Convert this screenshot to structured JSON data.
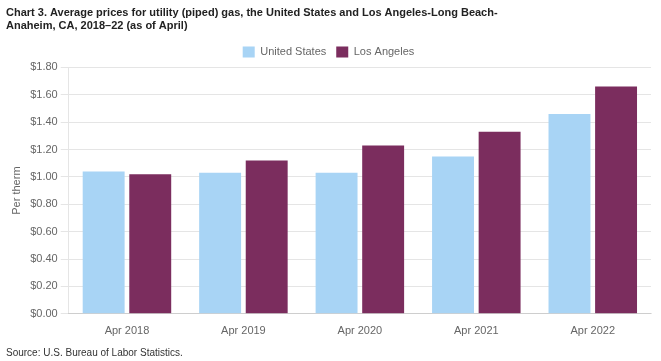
{
  "chart_data": {
    "type": "bar",
    "title": "Chart 3. Average prices for utility (piped) gas, the United States and Los Angeles-Long Beach-\nAnaheim, CA, 2018–22 (as of April)",
    "ylabel": "Per therm",
    "annotations": [
      "Source: U.S. Bureau of Labor Statistics."
    ],
    "categories": [
      "Apr 2018",
      "Apr 2019",
      "Apr 2020",
      "Apr 2021",
      "Apr 2022"
    ],
    "series": [
      {
        "name": "United States",
        "color": "#a8d4f5",
        "values": [
          1.04,
          1.03,
          1.03,
          1.15,
          1.46
        ]
      },
      {
        "name": "Los Angeles",
        "color": "#7B2D5E",
        "values": [
          1.02,
          1.12,
          1.23,
          1.33,
          1.66
        ]
      }
    ],
    "ylim": [
      0.0,
      1.8
    ],
    "yticks": [
      {
        "value": 0.0,
        "label": "$0.00"
      },
      {
        "value": 0.2,
        "label": "$0.20"
      },
      {
        "value": 0.4,
        "label": "$0.40"
      },
      {
        "value": 0.6,
        "label": "$0.60"
      },
      {
        "value": 0.8,
        "label": "$0.80"
      },
      {
        "value": 1.0,
        "label": "$1.00"
      },
      {
        "value": 1.2,
        "label": "$1.20"
      },
      {
        "value": 1.4,
        "label": "$1.40"
      },
      {
        "value": 1.6,
        "label": "$1.60"
      },
      {
        "value": 1.8,
        "label": "$1.80"
      }
    ],
    "grid": true,
    "legend": "top"
  }
}
